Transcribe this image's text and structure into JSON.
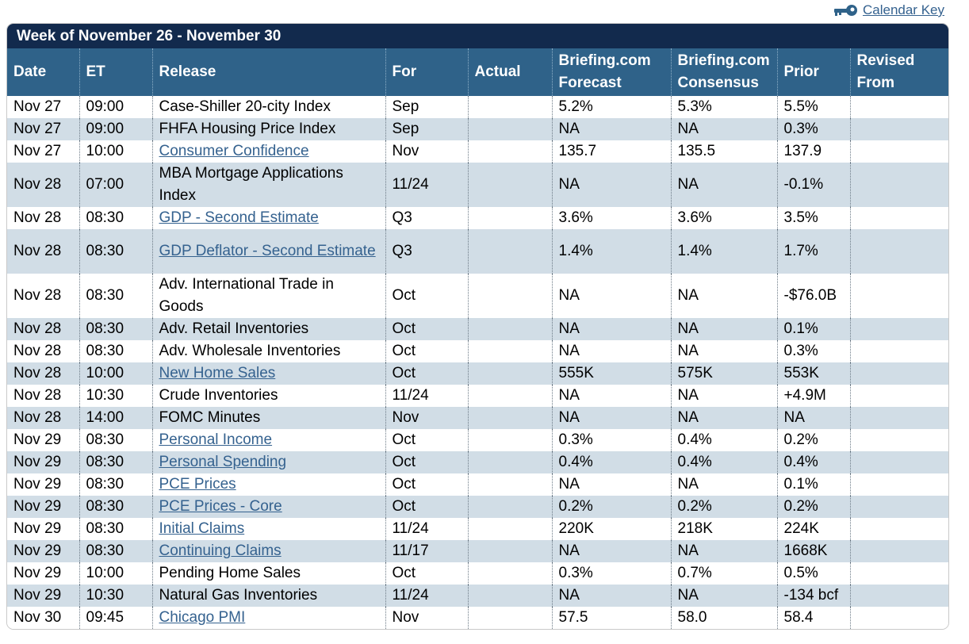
{
  "calendar_key": {
    "label": "Calendar Key",
    "icon": "key-icon"
  },
  "week_title": "Week of November 26 - November 30",
  "columns": [
    "Date",
    "ET",
    "Release",
    "For",
    "Actual",
    "Briefing.com Forecast",
    "Briefing.com Consensus",
    "Prior",
    "Revised From"
  ],
  "rows": [
    {
      "date": "Nov 27",
      "et": "09:00",
      "release": "Case-Shiller 20-city Index",
      "link": false,
      "for": "Sep",
      "actual": "",
      "forecast": "5.2%",
      "consensus": "5.3%",
      "prior": "5.5%",
      "revised": ""
    },
    {
      "date": "Nov 27",
      "et": "09:00",
      "release": "FHFA Housing Price Index",
      "link": false,
      "for": "Sep",
      "actual": "",
      "forecast": "NA",
      "consensus": "NA",
      "prior": "0.3%",
      "revised": ""
    },
    {
      "date": "Nov 27",
      "et": "10:00",
      "release": "Consumer Confidence",
      "link": true,
      "for": "Nov",
      "actual": "",
      "forecast": "135.7",
      "consensus": "135.5",
      "prior": "137.9",
      "revised": ""
    },
    {
      "date": "Nov 28",
      "et": "07:00",
      "release": "MBA Mortgage Applications Index",
      "link": false,
      "for": "11/24",
      "actual": "",
      "forecast": "NA",
      "consensus": "NA",
      "prior": "-0.1%",
      "revised": ""
    },
    {
      "date": "Nov 28",
      "et": "08:30",
      "release": "GDP - Second Estimate",
      "link": true,
      "for": "Q3",
      "actual": "",
      "forecast": "3.6%",
      "consensus": "3.6%",
      "prior": "3.5%",
      "revised": ""
    },
    {
      "date": "Nov 28",
      "et": "08:30",
      "release": "GDP Deflator - Second Estimate",
      "link": true,
      "for": "Q3",
      "actual": "",
      "forecast": "1.4%",
      "consensus": "1.4%",
      "prior": "1.7%",
      "revised": ""
    },
    {
      "date": "Nov 28",
      "et": "08:30",
      "release": "Adv. International Trade in Goods",
      "link": false,
      "for": "Oct",
      "actual": "",
      "forecast": "NA",
      "consensus": "NA",
      "prior": "-$76.0B",
      "revised": ""
    },
    {
      "date": "Nov 28",
      "et": "08:30",
      "release": "Adv. Retail Inventories",
      "link": false,
      "for": "Oct",
      "actual": "",
      "forecast": "NA",
      "consensus": "NA",
      "prior": "0.1%",
      "revised": ""
    },
    {
      "date": "Nov 28",
      "et": "08:30",
      "release": "Adv. Wholesale Inventories",
      "link": false,
      "for": "Oct",
      "actual": "",
      "forecast": "NA",
      "consensus": "NA",
      "prior": "0.3%",
      "revised": ""
    },
    {
      "date": "Nov 28",
      "et": "10:00",
      "release": "New Home Sales",
      "link": true,
      "for": "Oct",
      "actual": "",
      "forecast": "555K",
      "consensus": "575K",
      "prior": "553K",
      "revised": ""
    },
    {
      "date": "Nov 28",
      "et": "10:30",
      "release": "Crude Inventories",
      "link": false,
      "for": "11/24",
      "actual": "",
      "forecast": "NA",
      "consensus": "NA",
      "prior": "+4.9M",
      "revised": ""
    },
    {
      "date": "Nov 28",
      "et": "14:00",
      "release": "FOMC Minutes",
      "link": false,
      "for": "Nov",
      "actual": "",
      "forecast": "NA",
      "consensus": "NA",
      "prior": "NA",
      "revised": ""
    },
    {
      "date": "Nov 29",
      "et": "08:30",
      "release": "Personal Income",
      "link": true,
      "for": "Oct",
      "actual": "",
      "forecast": "0.3%",
      "consensus": "0.4%",
      "prior": "0.2%",
      "revised": ""
    },
    {
      "date": "Nov 29",
      "et": "08:30",
      "release": "Personal Spending",
      "link": true,
      "for": "Oct",
      "actual": "",
      "forecast": "0.4%",
      "consensus": "0.4%",
      "prior": "0.4%",
      "revised": ""
    },
    {
      "date": "Nov 29",
      "et": "08:30",
      "release": "PCE Prices",
      "link": true,
      "for": "Oct",
      "actual": "",
      "forecast": "NA",
      "consensus": "NA",
      "prior": "0.1%",
      "revised": ""
    },
    {
      "date": "Nov 29",
      "et": "08:30",
      "release": "PCE Prices - Core",
      "link": true,
      "for": "Oct",
      "actual": "",
      "forecast": "0.2%",
      "consensus": "0.2%",
      "prior": "0.2%",
      "revised": ""
    },
    {
      "date": "Nov 29",
      "et": "08:30",
      "release": "Initial Claims",
      "link": true,
      "for": "11/24",
      "actual": "",
      "forecast": "220K",
      "consensus": "218K",
      "prior": "224K",
      "revised": ""
    },
    {
      "date": "Nov 29",
      "et": "08:30",
      "release": "Continuing Claims",
      "link": true,
      "for": "11/17",
      "actual": "",
      "forecast": "NA",
      "consensus": "NA",
      "prior": "1668K",
      "revised": ""
    },
    {
      "date": "Nov 29",
      "et": "10:00",
      "release": "Pending Home Sales",
      "link": false,
      "for": "Oct",
      "actual": "",
      "forecast": "0.3%",
      "consensus": "0.7%",
      "prior": "0.5%",
      "revised": ""
    },
    {
      "date": "Nov 29",
      "et": "10:30",
      "release": "Natural Gas Inventories",
      "link": false,
      "for": "11/24",
      "actual": "",
      "forecast": "NA",
      "consensus": "NA",
      "prior": "-134 bcf",
      "revised": ""
    },
    {
      "date": "Nov 30",
      "et": "09:45",
      "release": "Chicago PMI",
      "link": true,
      "for": "Nov",
      "actual": "",
      "forecast": "57.5",
      "consensus": "58.0",
      "prior": "58.4",
      "revised": ""
    }
  ],
  "colors": {
    "title_bar": "#122a4d",
    "header": "#2f6289",
    "row_alt": "#d1dde6",
    "link": "#35628f"
  }
}
